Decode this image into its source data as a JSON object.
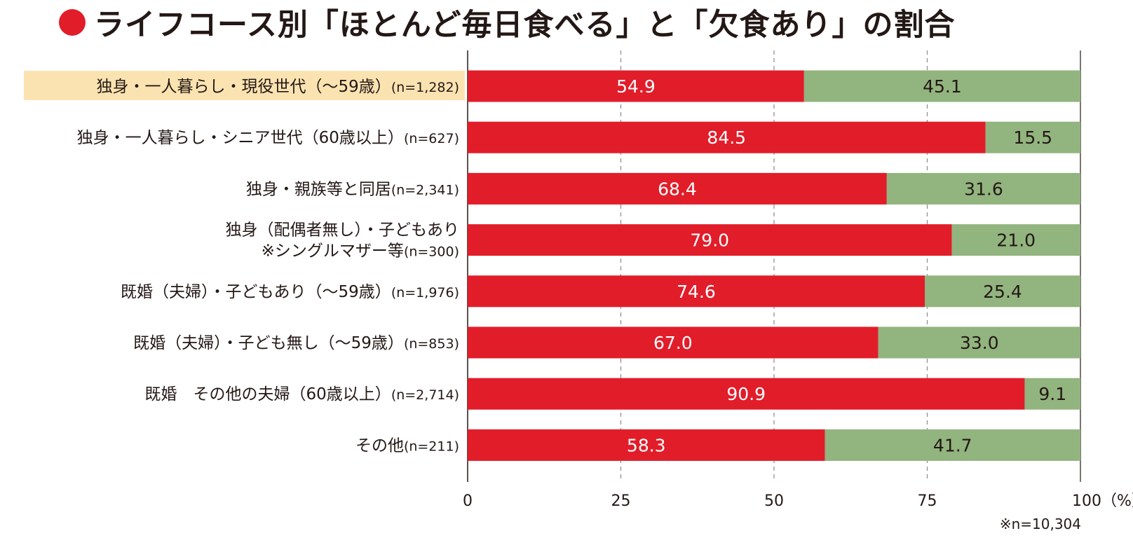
{
  "title": "ライフコース別「ほとんど毎日食べる」と「欠食あり」の割合",
  "footnote": "※n=10,304",
  "colors": {
    "daily": "#e11d2a",
    "skip": "#92b47e",
    "highlight": "#fbe3b1",
    "text": "#231815"
  },
  "chart_data": {
    "type": "bar",
    "orientation": "horizontal",
    "stacked": true,
    "categories": [
      {
        "lines": [
          "独身・一人暮らし・現役世代（～59歳）"
        ],
        "n": "(n=1,282)",
        "highlighted": true
      },
      {
        "lines": [
          "独身・一人暮らし・シニア世代（60歳以上）"
        ],
        "n": "(n=627)",
        "highlighted": false
      },
      {
        "lines": [
          "独身・親族等と同居"
        ],
        "n": "(n=2,341)",
        "highlighted": false
      },
      {
        "lines": [
          "独身（配偶者無し）・子どもあり",
          "※シングルマザー等"
        ],
        "n": "(n=300)",
        "highlighted": false
      },
      {
        "lines": [
          "既婚（夫婦）・子どもあり（～59歳）"
        ],
        "n": "(n=1,976)",
        "highlighted": false
      },
      {
        "lines": [
          "既婚（夫婦）・子ども無し（～59歳）"
        ],
        "n": "(n=853)",
        "highlighted": false
      },
      {
        "lines": [
          "既婚　その他の夫婦（60歳以上）"
        ],
        "n": "(n=2,714)",
        "highlighted": false
      },
      {
        "lines": [
          "その他"
        ],
        "n": "(n=211)",
        "highlighted": false
      }
    ],
    "series": [
      {
        "values": [
          54.9,
          84.5,
          68.4,
          79.0,
          74.6,
          67.0,
          90.9,
          58.3
        ]
      },
      {
        "values": [
          45.1,
          15.5,
          31.6,
          21.0,
          25.4,
          33.0,
          9.1,
          41.7
        ]
      }
    ],
    "xlim": [
      0,
      100
    ],
    "xticks": [
      "0",
      "25",
      "50",
      "75",
      "100（%）"
    ],
    "grid": "dashed vertical"
  }
}
